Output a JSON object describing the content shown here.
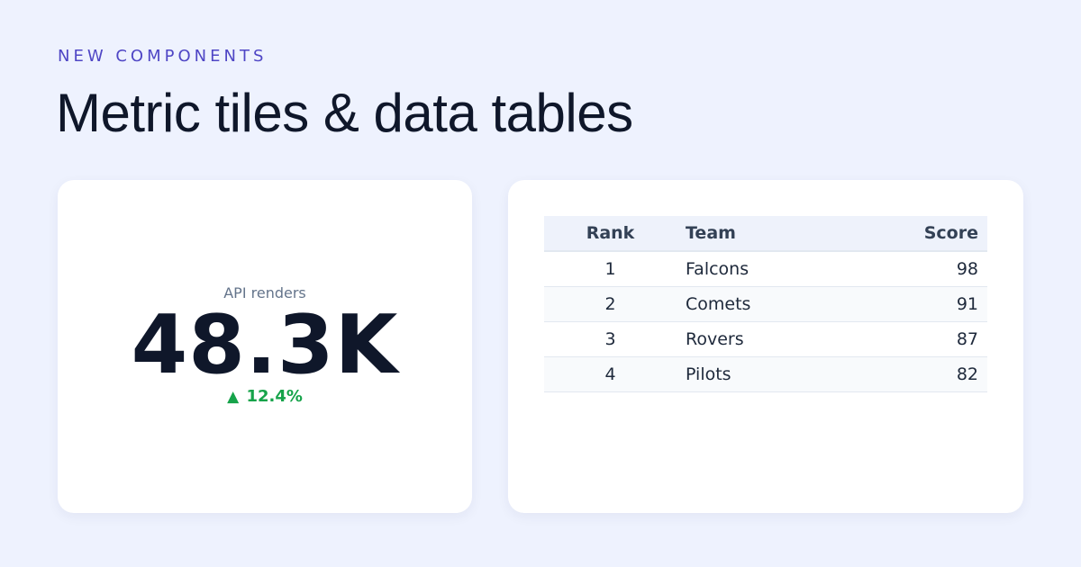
{
  "header": {
    "eyebrow": "NEW COMPONENTS",
    "title": "Metric tiles & data tables"
  },
  "metric": {
    "label": "API renders",
    "value": "48.3K",
    "delta_icon": "triangle-up-icon",
    "delta": "12.4%"
  },
  "table": {
    "columns": [
      "Rank",
      "Team",
      "Score"
    ],
    "rows": [
      [
        "1",
        "Falcons",
        "98"
      ],
      [
        "2",
        "Comets",
        "91"
      ],
      [
        "3",
        "Rovers",
        "87"
      ],
      [
        "4",
        "Pilots",
        "82"
      ]
    ]
  },
  "colors": {
    "background": "#eef2fe",
    "eyebrow": "#4f46c5",
    "delta_positive": "#16a34a"
  }
}
